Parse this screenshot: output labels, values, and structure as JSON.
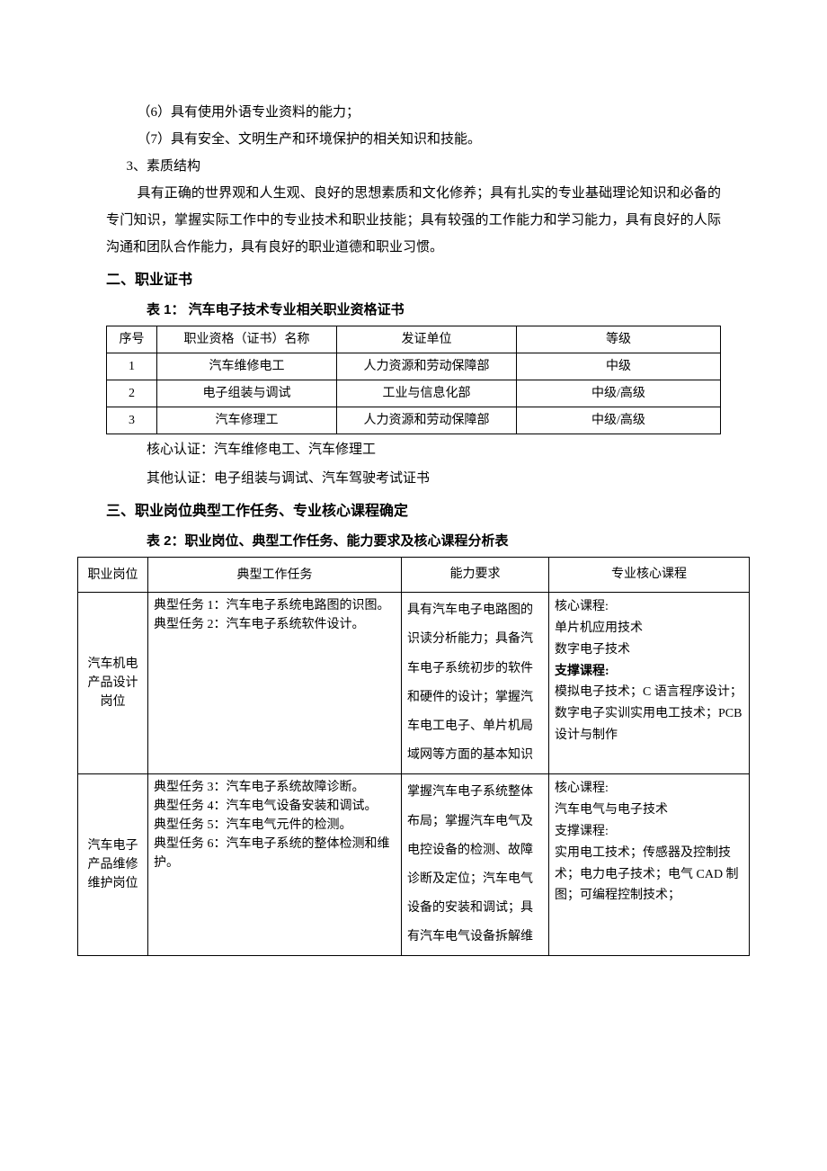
{
  "body": {
    "line1": "（6）具有使用外语专业资料的能力；",
    "line2": "（7）具有安全、文明生产和环境保护的相关知识和技能。",
    "subheading": "3、素质结构",
    "paragraph": "具有正确的世界观和人生观、良好的思想素质和文化修养；具有扎实的专业基础理论知识和必备的专门知识，掌握实际工作中的专业技术和职业技能；具有较强的工作能力和学习能力，具有良好的人际沟通和团队合作能力，具有良好的职业道德和职业习惯。"
  },
  "section2": {
    "heading": "二、职业证书",
    "caption": "表 1：  汽车电子技术专业相关职业资格证书",
    "table": {
      "headers": [
        "序号",
        "职业资格（证书）名称",
        "发证单位",
        "等级"
      ],
      "rows": [
        [
          "1",
          "汽车维修电工",
          "人力资源和劳动保障部",
          "中级"
        ],
        [
          "2",
          "电子组装与调试",
          "工业与信息化部",
          "中级/高级"
        ],
        [
          "3",
          "汽车修理工",
          "人力资源和劳动保障部",
          "中级/高级"
        ]
      ]
    },
    "note1": "核心认证：汽车维修电工、汽车修理工",
    "note2": "其他认证：电子组装与调试、汽车驾驶考试证书"
  },
  "section3": {
    "heading": "三、职业岗位典型工作任务、专业核心课程确定",
    "caption": "表 2：职业岗位、典型工作任务、能力要求及核心课程分析表",
    "table": {
      "headers": [
        "职业岗位",
        "典型工作任务",
        "能力要求",
        "专业核心课程"
      ],
      "rows": [
        {
          "position": "汽车机电产品设计岗位",
          "tasks": "典型任务 1：汽车电子系统电路图的识图。\n典型任务 2：汽车电子系统软件设计。",
          "ability": "具有汽车电子电路图的识读分析能力；具备汽车电子系统初步的软件和硬件的设计；掌握汽车电工电子、单片机局域网等方面的基本知识",
          "courses_core_label": "核心课程:",
          "courses_core": "单片机应用技术\n数字电子技术",
          "courses_support_label": "支撑课程:",
          "courses_support": "模拟电子技术；C 语言程序设计；数字电子实训实用电工技术；PCB 设计与制作"
        },
        {
          "position": "汽车电子产品维修维护岗位",
          "tasks": "典型任务 3：汽车电子系统故障诊断。\n典型任务 4：汽车电气设备安装和调试。\n典型任务 5：汽车电气元件的检测。\n典型任务 6：汽车电子系统的整体检测和维护。",
          "ability": "掌握汽车电子系统整体布局；掌握汽车电气及电控设备的检测、故障诊断及定位；汽车电气设备的安装和调试；具有汽车电气设备拆解维",
          "courses_core_label": "核心课程:",
          "courses_core": "汽车电气与电子技术",
          "courses_support_label": "支撑课程:",
          "courses_support": "实用电工技术；传感器及控制技术；电力电子技术；电气 CAD 制图；可编程控制技术；"
        }
      ]
    }
  }
}
